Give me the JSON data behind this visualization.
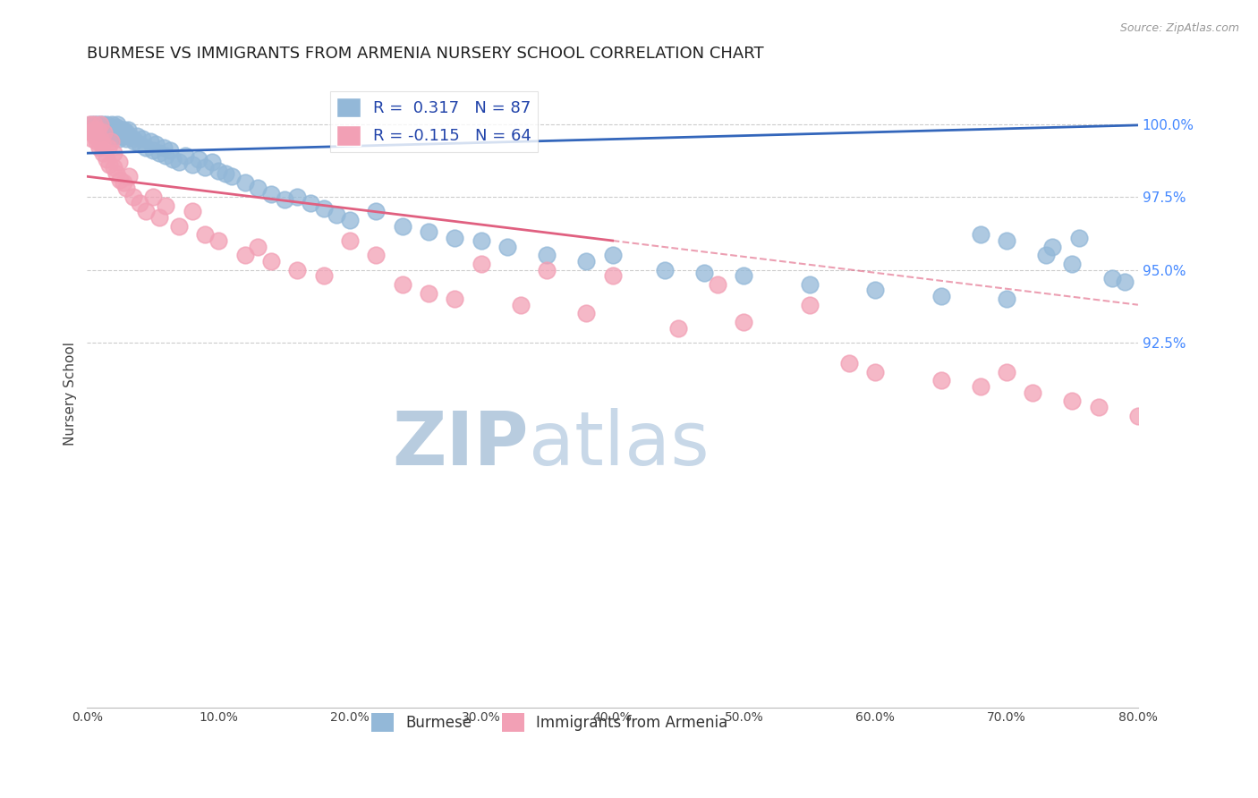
{
  "title": "BURMESE VS IMMIGRANTS FROM ARMENIA NURSERY SCHOOL CORRELATION CHART",
  "source": "Source: ZipAtlas.com",
  "ylabel": "Nursery School",
  "blue_R": 0.317,
  "blue_N": 87,
  "pink_R": -0.115,
  "pink_N": 64,
  "blue_color": "#93b8d8",
  "pink_color": "#f2a0b5",
  "blue_line_color": "#3366bb",
  "pink_line_color": "#e06080",
  "grid_color": "#cccccc",
  "title_color": "#222222",
  "right_axis_color": "#4488ff",
  "source_color": "#999999",
  "watermark_color": "#ccddf0",
  "legend_blue_label": "Burmese",
  "legend_pink_label": "Immigrants from Armenia",
  "xlim": [
    0.0,
    80.0
  ],
  "ylim": [
    80.0,
    101.5
  ],
  "yticks": [
    92.5,
    95.0,
    97.5,
    100.0
  ],
  "blue_intercept": 99.0,
  "blue_slope": 0.012,
  "pink_intercept": 98.2,
  "pink_slope": -0.055,
  "pink_solid_end": 40.0,
  "blue_scatter_x": [
    0.3,
    0.5,
    0.6,
    0.7,
    0.8,
    0.9,
    1.0,
    1.0,
    1.1,
    1.2,
    1.3,
    1.4,
    1.5,
    1.6,
    1.7,
    1.8,
    1.9,
    2.0,
    2.0,
    2.1,
    2.2,
    2.3,
    2.4,
    2.5,
    2.6,
    2.7,
    2.8,
    3.0,
    3.0,
    3.1,
    3.2,
    3.5,
    3.6,
    3.8,
    4.0,
    4.2,
    4.5,
    4.8,
    5.0,
    5.2,
    5.5,
    5.8,
    6.0,
    6.3,
    6.5,
    7.0,
    7.5,
    8.0,
    8.5,
    9.0,
    9.5,
    10.0,
    10.5,
    11.0,
    12.0,
    13.0,
    14.0,
    15.0,
    16.0,
    17.0,
    18.0,
    19.0,
    20.0,
    22.0,
    24.0,
    26.0,
    28.0,
    30.0,
    32.0,
    35.0,
    38.0,
    40.0,
    44.0,
    47.0,
    50.0,
    55.0,
    60.0,
    65.0,
    70.0,
    73.0,
    75.0,
    78.0,
    79.0,
    70.0,
    68.0,
    73.5,
    75.5
  ],
  "blue_scatter_y": [
    100.0,
    99.8,
    100.0,
    99.9,
    100.0,
    99.7,
    99.8,
    100.0,
    99.9,
    100.0,
    99.8,
    99.9,
    100.0,
    99.7,
    99.8,
    99.9,
    100.0,
    99.6,
    99.8,
    99.7,
    99.9,
    100.0,
    99.5,
    99.7,
    99.8,
    99.6,
    99.8,
    99.5,
    99.7,
    99.8,
    99.6,
    99.5,
    99.4,
    99.6,
    99.3,
    99.5,
    99.2,
    99.4,
    99.1,
    99.3,
    99.0,
    99.2,
    98.9,
    99.1,
    98.8,
    98.7,
    98.9,
    98.6,
    98.8,
    98.5,
    98.7,
    98.4,
    98.3,
    98.2,
    98.0,
    97.8,
    97.6,
    97.4,
    97.5,
    97.3,
    97.1,
    96.9,
    96.7,
    97.0,
    96.5,
    96.3,
    96.1,
    96.0,
    95.8,
    95.5,
    95.3,
    95.5,
    95.0,
    94.9,
    94.8,
    94.5,
    94.3,
    94.1,
    94.0,
    95.5,
    95.2,
    94.7,
    94.6,
    96.0,
    96.2,
    95.8,
    96.1
  ],
  "pink_scatter_x": [
    0.2,
    0.3,
    0.4,
    0.5,
    0.5,
    0.6,
    0.7,
    0.8,
    0.9,
    1.0,
    1.0,
    1.1,
    1.2,
    1.3,
    1.5,
    1.6,
    1.7,
    1.8,
    2.0,
    2.0,
    2.2,
    2.4,
    2.5,
    2.8,
    3.0,
    3.2,
    3.5,
    4.0,
    4.5,
    5.0,
    5.5,
    6.0,
    7.0,
    8.0,
    9.0,
    10.0,
    12.0,
    13.0,
    14.0,
    16.0,
    18.0,
    20.0,
    22.0,
    24.0,
    26.0,
    28.0,
    30.0,
    33.0,
    35.0,
    38.0,
    40.0,
    45.0,
    48.0,
    50.0,
    55.0,
    58.0,
    60.0,
    65.0,
    68.0,
    70.0,
    72.0,
    75.0,
    77.0,
    80.0
  ],
  "pink_scatter_y": [
    100.0,
    99.7,
    99.5,
    99.8,
    100.0,
    99.6,
    99.4,
    99.8,
    99.2,
    99.5,
    100.0,
    99.3,
    99.0,
    99.7,
    98.8,
    99.2,
    98.6,
    99.4,
    98.5,
    99.0,
    98.3,
    98.7,
    98.1,
    98.0,
    97.8,
    98.2,
    97.5,
    97.3,
    97.0,
    97.5,
    96.8,
    97.2,
    96.5,
    97.0,
    96.2,
    96.0,
    95.5,
    95.8,
    95.3,
    95.0,
    94.8,
    96.0,
    95.5,
    94.5,
    94.2,
    94.0,
    95.2,
    93.8,
    95.0,
    93.5,
    94.8,
    93.0,
    94.5,
    93.2,
    93.8,
    91.8,
    91.5,
    91.2,
    91.0,
    91.5,
    90.8,
    90.5,
    90.3,
    90.0
  ]
}
